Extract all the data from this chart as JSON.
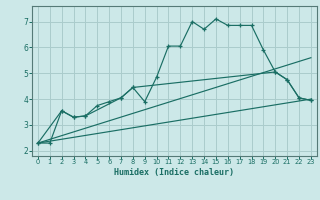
{
  "xlabel": "Humidex (Indice chaleur)",
  "background_color": "#cce8e8",
  "grid_color": "#aacccc",
  "line_color": "#1a6e64",
  "xlim": [
    -0.5,
    23.5
  ],
  "ylim": [
    1.8,
    7.6
  ],
  "yticks": [
    2,
    3,
    4,
    5,
    6,
    7
  ],
  "xticks": [
    0,
    1,
    2,
    3,
    4,
    5,
    6,
    7,
    8,
    9,
    10,
    11,
    12,
    13,
    14,
    15,
    16,
    17,
    18,
    19,
    20,
    21,
    22,
    23
  ],
  "line1_x": [
    0,
    1,
    2,
    3,
    4,
    5,
    6,
    7,
    8,
    9,
    10,
    11,
    12,
    13,
    14,
    15,
    16,
    17,
    18,
    19,
    20,
    21,
    22,
    23
  ],
  "line1_y": [
    2.3,
    2.3,
    3.55,
    3.3,
    3.35,
    3.75,
    3.9,
    4.05,
    4.45,
    3.9,
    4.85,
    6.05,
    6.05,
    7.0,
    6.7,
    7.1,
    6.85,
    6.85,
    6.85,
    5.9,
    5.05,
    4.75,
    4.05,
    3.95
  ],
  "line2_x": [
    0,
    2,
    3,
    4,
    7,
    8,
    20,
    21,
    22,
    23
  ],
  "line2_y": [
    2.3,
    3.55,
    3.3,
    3.35,
    4.05,
    4.45,
    5.05,
    4.75,
    4.05,
    3.95
  ],
  "line3_x": [
    0,
    23
  ],
  "line3_y": [
    2.3,
    4.0
  ],
  "line4_x": [
    0,
    23
  ],
  "line4_y": [
    2.3,
    5.6
  ]
}
